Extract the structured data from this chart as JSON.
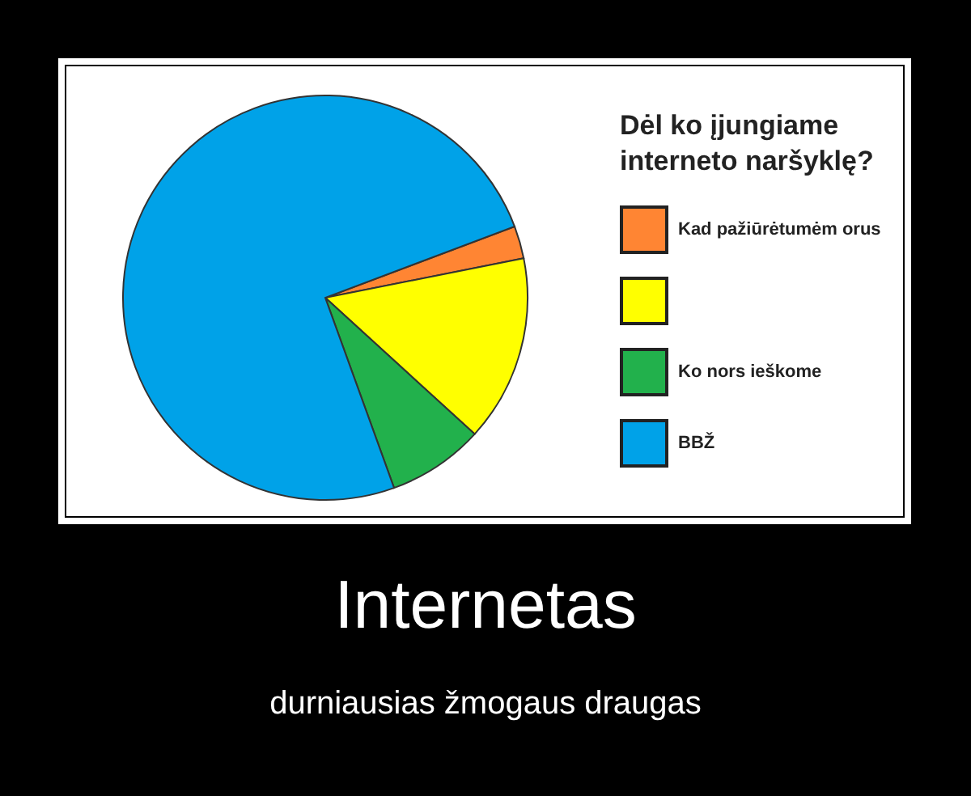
{
  "chart_data": {
    "type": "pie",
    "legend_title": "Dėl ko įjungiame interneto naršyklę?",
    "categories": [
      "Kad pažiūrėtumėm orus",
      null,
      "Ko nors ieškome",
      "BBŽ"
    ],
    "values": [
      2.6,
      14.9,
      7.7,
      74.8
    ],
    "colors": [
      "#ff8533",
      "#ffff00",
      "#22b14c",
      "#00a2e8"
    ],
    "legend": "right",
    "annotations": [
      "Internetas",
      "durniausias žmogaus draugas"
    ]
  }
}
